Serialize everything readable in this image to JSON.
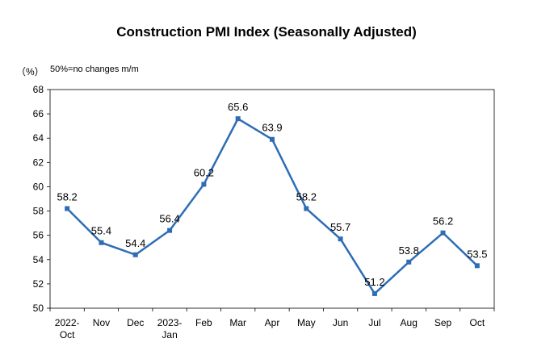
{
  "chart_data": {
    "type": "line",
    "title": "Construction PMI Index (Seasonally Adjusted)",
    "unit_label": "（%）",
    "note": "50%=no changes m/m",
    "categories": [
      "2022-\nOct",
      "Nov",
      "Dec",
      "2023-\nJan",
      "Feb",
      "Mar",
      "Apr",
      "May",
      "Jun",
      "Jul",
      "Aug",
      "Sep",
      "Oct"
    ],
    "values": [
      58.2,
      55.4,
      54.4,
      56.4,
      60.2,
      65.6,
      63.9,
      58.2,
      55.7,
      51.2,
      53.8,
      56.2,
      53.5
    ],
    "yticks": [
      50,
      52,
      54,
      56,
      58,
      60,
      62,
      64,
      66,
      68
    ],
    "ylim": [
      50,
      68
    ],
    "line_color": "#2e6db5",
    "marker_color": "#2e6db5",
    "grid": false,
    "legend": "none"
  }
}
